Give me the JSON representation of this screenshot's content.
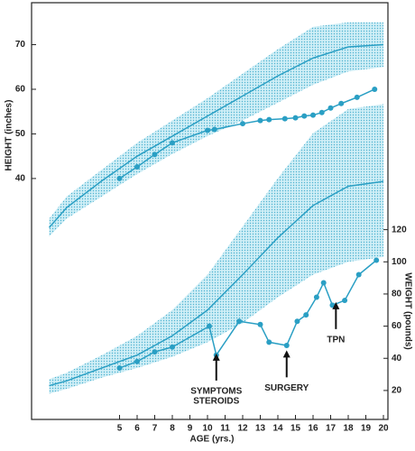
{
  "chart_data": {
    "type": "line",
    "x_label": "AGE (yrs.)",
    "y_label": "HEIGHT (inches)",
    "y2_label": "WEIGHT (pounds)",
    "xlim": [
      0,
      20
    ],
    "xticks": [
      5,
      6,
      7,
      8,
      9,
      10,
      11,
      12,
      13,
      14,
      15,
      16,
      17,
      18,
      19,
      20
    ],
    "ylim": [
      -14,
      79
    ],
    "yticks": [
      40,
      50,
      60,
      70
    ],
    "y2lim": [
      2,
      260
    ],
    "y2ticks": [
      20,
      40,
      60,
      80,
      100,
      120
    ],
    "bands": [
      {
        "color": "#bfe5ef",
        "x": [
          1,
          2,
          4,
          6,
          8,
          10,
          12,
          14,
          16,
          18,
          20
        ],
        "lower": [
          27,
          31,
          36,
          41,
          45.5,
          49.5,
          53,
          57,
          61,
          64,
          65
        ],
        "upper": [
          31,
          36,
          42,
          48,
          53,
          58,
          63.5,
          69,
          74,
          75,
          75
        ]
      },
      {
        "color": "#bfe5ef",
        "axis": "y2",
        "x": [
          1,
          2,
          4,
          6,
          8,
          10,
          12,
          14,
          16,
          18,
          20
        ],
        "lower": [
          18,
          21,
          28,
          34,
          41,
          50,
          62,
          78,
          92,
          100,
          103
        ],
        "upper": [
          27,
          31,
          42,
          54,
          70,
          92,
          122,
          152,
          180,
          195,
          198
        ]
      }
    ],
    "series": [
      {
        "color": "#2a9fc4",
        "marker": false,
        "x": [
          1,
          2,
          4,
          6,
          8,
          10,
          12,
          14,
          16,
          18,
          20
        ],
        "values": [
          29,
          33.5,
          39.5,
          45,
          49.5,
          54,
          58.5,
          63,
          67,
          69.5,
          70
        ]
      },
      {
        "color": "#2a9fc4",
        "marker": true,
        "x": [
          5,
          6,
          7,
          8,
          10,
          10.4,
          12,
          13,
          13.5,
          14.4,
          15,
          15.5,
          16,
          16.5,
          17,
          17.6,
          18.5,
          19.5
        ],
        "values": [
          40,
          42.6,
          45.4,
          48,
          50.8,
          51,
          52.3,
          53,
          53.2,
          53.4,
          53.6,
          54,
          54.2,
          54.8,
          55.8,
          56.8,
          58.2,
          60
        ]
      },
      {
        "color": "#2a9fc4",
        "marker": false,
        "axis": "y2",
        "x": [
          1,
          2,
          4,
          6,
          8,
          10,
          12,
          14,
          16,
          18,
          20
        ],
        "values": [
          23,
          26,
          34,
          42,
          54,
          70,
          92,
          115,
          135,
          147,
          150
        ]
      },
      {
        "color": "#2a9fc4",
        "marker": true,
        "axis": "y2",
        "x": [
          5,
          6,
          7,
          8,
          10.1,
          10.5,
          11.8,
          13,
          13.5,
          14.5,
          15.1,
          15.6,
          16.2,
          16.6,
          17.1,
          17.8,
          18.6,
          19.6
        ],
        "values": [
          34,
          38,
          44,
          47,
          60,
          42,
          63,
          61,
          50,
          48,
          63,
          67,
          78,
          87,
          73,
          76,
          92,
          101
        ]
      }
    ],
    "annotations": [
      {
        "lines": [
          "SYMPTOMS",
          "STEROIDS"
        ],
        "x": 10.5,
        "y": 43,
        "axis": "y2"
      },
      {
        "lines": [
          "SURGERY"
        ],
        "x": 14.5,
        "y": 45,
        "axis": "y2"
      },
      {
        "lines": [
          "TPN"
        ],
        "x": 17.3,
        "y": 75,
        "axis": "y2"
      }
    ]
  }
}
